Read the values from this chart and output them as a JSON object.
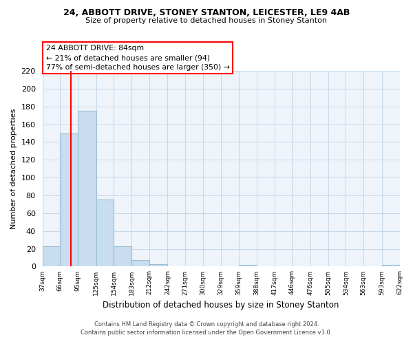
{
  "title": "24, ABBOTT DRIVE, STONEY STANTON, LEICESTER, LE9 4AB",
  "subtitle": "Size of property relative to detached houses in Stoney Stanton",
  "xlabel": "Distribution of detached houses by size in Stoney Stanton",
  "ylabel": "Number of detached properties",
  "footnote1": "Contains HM Land Registry data © Crown copyright and database right 2024.",
  "footnote2": "Contains public sector information licensed under the Open Government Licence v3.0.",
  "bin_edges": [
    37,
    66,
    95,
    125,
    154,
    183,
    212,
    242,
    271,
    300,
    329,
    359,
    388,
    417,
    446,
    476,
    505,
    534,
    563,
    593,
    622
  ],
  "bar_heights": [
    23,
    150,
    175,
    75,
    23,
    7,
    3,
    0,
    0,
    0,
    0,
    2,
    0,
    0,
    0,
    0,
    0,
    0,
    0,
    2
  ],
  "bar_color": "#c8ddef",
  "bar_edge_color": "#9bbdd4",
  "vline_x": 84,
  "vline_color": "red",
  "ylim": [
    0,
    220
  ],
  "yticks": [
    0,
    20,
    40,
    60,
    80,
    100,
    120,
    140,
    160,
    180,
    200,
    220
  ],
  "annotation_title": "24 ABBOTT DRIVE: 84sqm",
  "annotation_line1": "← 21% of detached houses are smaller (94)",
  "annotation_line2": "77% of semi-detached houses are larger (350) →",
  "annot_box_color": "white",
  "annot_box_edge_color": "red",
  "background_color": "white",
  "plot_bg_color": "#eef4fa",
  "grid_color": "#c5d8ea"
}
